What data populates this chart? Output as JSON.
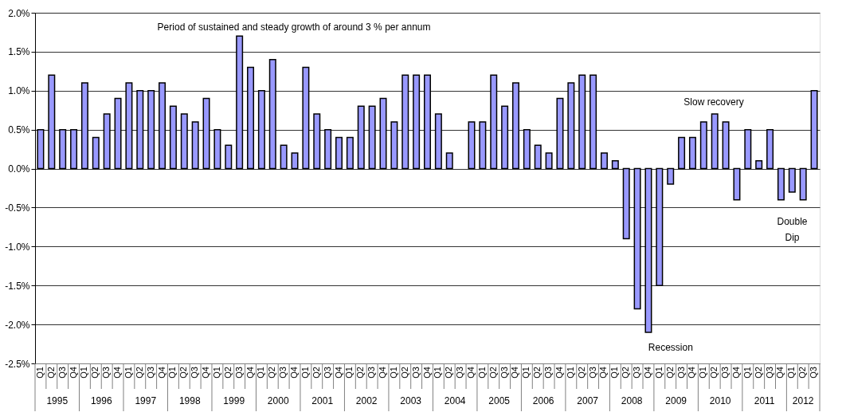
{
  "chart_data": {
    "type": "bar",
    "categories": [
      "Q1",
      "Q2",
      "Q3",
      "Q4",
      "Q1",
      "Q2",
      "Q3",
      "Q4",
      "Q1",
      "Q2",
      "Q3",
      "Q4",
      "Q1",
      "Q2",
      "Q3",
      "Q4",
      "Q1",
      "Q2",
      "Q3",
      "Q4",
      "Q1",
      "Q2",
      "Q3",
      "Q4",
      "Q1",
      "Q2",
      "Q3",
      "Q4",
      "Q1",
      "Q2",
      "Q3",
      "Q4",
      "Q1",
      "Q2",
      "Q3",
      "Q4",
      "Q1",
      "Q2",
      "Q3",
      "Q4",
      "Q1",
      "Q2",
      "Q3",
      "Q4",
      "Q1",
      "Q2",
      "Q3",
      "Q4",
      "Q1",
      "Q2",
      "Q3",
      "Q4",
      "Q1",
      "Q2",
      "Q3",
      "Q4",
      "Q1",
      "Q2",
      "Q3",
      "Q4",
      "Q1",
      "Q2",
      "Q3",
      "Q4",
      "Q1",
      "Q2",
      "Q3",
      "Q4",
      "Q1",
      "Q2",
      "Q3"
    ],
    "series": [
      {
        "color": "#9999ff",
        "values": [
          0.5,
          1.2,
          0.5,
          0.5,
          1.1,
          0.4,
          0.7,
          0.9,
          1.1,
          1.0,
          1.0,
          1.1,
          0.8,
          0.7,
          0.6,
          0.9,
          0.5,
          0.3,
          1.7,
          1.3,
          1.0,
          1.4,
          0.3,
          0.2,
          1.3,
          0.7,
          0.5,
          0.4,
          0.4,
          0.8,
          0.8,
          0.9,
          0.6,
          1.2,
          1.2,
          1.2,
          0.7,
          0.2,
          null,
          0.6,
          0.6,
          1.2,
          0.8,
          1.1,
          0.5,
          0.3,
          0.2,
          0.9,
          1.1,
          1.2,
          1.2,
          0.2,
          0.1,
          -0.9,
          -1.8,
          -2.1,
          -1.5,
          -0.2,
          0.4,
          0.4,
          0.6,
          0.7,
          0.6,
          -0.4,
          0.5,
          0.1,
          0.5,
          -0.4,
          -0.3,
          -0.4,
          1.0
        ]
      }
    ],
    "ylim": [
      -2.5,
      2.0
    ],
    "yticks": [
      {
        "value": -2.5,
        "label": "-2.5%"
      },
      {
        "value": -2.0,
        "label": "-2.0%"
      },
      {
        "value": -1.5,
        "label": "-1.5%"
      },
      {
        "value": -1.0,
        "label": "-1.0%"
      },
      {
        "value": -0.5,
        "label": "-0.5%"
      },
      {
        "value": 0,
        "label": "0.0%"
      },
      {
        "value": 0.5,
        "label": "0.5%"
      },
      {
        "value": 1.0,
        "label": "1.0%"
      },
      {
        "value": 1.5,
        "label": "1.5%"
      },
      {
        "value": 2.0,
        "label": "2.0%"
      }
    ],
    "grid": "y",
    "annotations": [
      "1995",
      "1996",
      "1997",
      "1998",
      "1999",
      "2000",
      "2001",
      "2002",
      "2003",
      "2004",
      "2005",
      "2006",
      "2007",
      "2008",
      "2009",
      "2010",
      "2011",
      "2012",
      "Period of sustained and steady growth of around 3 % per annum",
      "Slow recovery",
      "Recession",
      "Double\nDip"
    ]
  }
}
